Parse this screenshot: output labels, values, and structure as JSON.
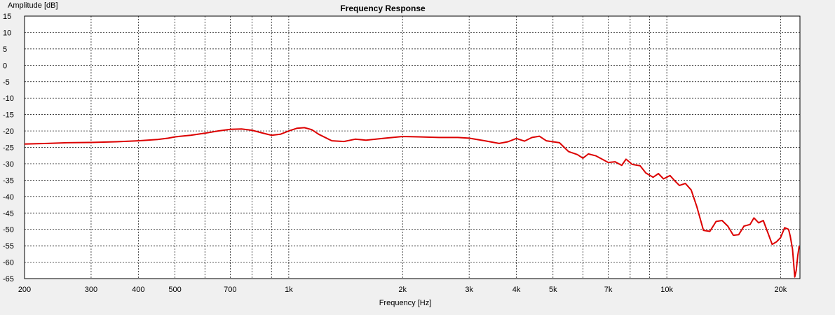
{
  "chart_data": {
    "type": "line",
    "title": "Frequency Response",
    "xlabel": "Frequency [Hz]",
    "ylabel": "Amplitude [dB]",
    "xscale": "log",
    "xlim": [
      200,
      22500
    ],
    "ylim": [
      -65,
      15
    ],
    "grid": true,
    "legend": "none",
    "x_major_ticks": [
      {
        "value": 200,
        "label": "200"
      },
      {
        "value": 300,
        "label": "300"
      },
      {
        "value": 400,
        "label": "400"
      },
      {
        "value": 500,
        "label": "500"
      },
      {
        "value": 700,
        "label": "700"
      },
      {
        "value": 1000,
        "label": "1k"
      },
      {
        "value": 2000,
        "label": "2k"
      },
      {
        "value": 3000,
        "label": "3k"
      },
      {
        "value": 4000,
        "label": "4k"
      },
      {
        "value": 5000,
        "label": "5k"
      },
      {
        "value": 7000,
        "label": "7k"
      },
      {
        "value": 10000,
        "label": "10k"
      },
      {
        "value": 20000,
        "label": "20k"
      }
    ],
    "x_minor_gridlines": [
      600,
      800,
      900,
      6000,
      8000,
      9000
    ],
    "y_ticks": [
      15,
      10,
      5,
      0,
      -5,
      -10,
      -15,
      -20,
      -25,
      -30,
      -35,
      -40,
      -45,
      -50,
      -55,
      -60,
      -65
    ],
    "series": [
      {
        "color": "#dc0000",
        "points": [
          [
            200,
            -24.0
          ],
          [
            230,
            -23.8
          ],
          [
            260,
            -23.6
          ],
          [
            300,
            -23.5
          ],
          [
            350,
            -23.3
          ],
          [
            400,
            -23.0
          ],
          [
            450,
            -22.6
          ],
          [
            480,
            -22.2
          ],
          [
            500,
            -21.8
          ],
          [
            550,
            -21.3
          ],
          [
            600,
            -20.7
          ],
          [
            650,
            -20.0
          ],
          [
            700,
            -19.5
          ],
          [
            750,
            -19.4
          ],
          [
            800,
            -19.8
          ],
          [
            850,
            -20.6
          ],
          [
            900,
            -21.3
          ],
          [
            950,
            -21.0
          ],
          [
            1000,
            -20.0
          ],
          [
            1050,
            -19.2
          ],
          [
            1100,
            -19.0
          ],
          [
            1150,
            -19.6
          ],
          [
            1200,
            -21.0
          ],
          [
            1300,
            -23.0
          ],
          [
            1400,
            -23.2
          ],
          [
            1500,
            -22.5
          ],
          [
            1600,
            -22.8
          ],
          [
            1800,
            -22.2
          ],
          [
            2000,
            -21.7
          ],
          [
            2200,
            -21.8
          ],
          [
            2500,
            -22.0
          ],
          [
            2800,
            -22.0
          ],
          [
            3000,
            -22.2
          ],
          [
            3300,
            -23.0
          ],
          [
            3600,
            -23.8
          ],
          [
            3800,
            -23.3
          ],
          [
            4000,
            -22.3
          ],
          [
            4200,
            -23.1
          ],
          [
            4400,
            -22.0
          ],
          [
            4600,
            -21.6
          ],
          [
            4800,
            -23.0
          ],
          [
            5200,
            -23.6
          ],
          [
            5500,
            -26.3
          ],
          [
            5800,
            -27.2
          ],
          [
            6000,
            -28.3
          ],
          [
            6200,
            -27.0
          ],
          [
            6500,
            -27.6
          ],
          [
            7000,
            -29.6
          ],
          [
            7300,
            -29.4
          ],
          [
            7600,
            -30.5
          ],
          [
            7800,
            -28.6
          ],
          [
            8100,
            -30.2
          ],
          [
            8500,
            -30.6
          ],
          [
            8800,
            -32.8
          ],
          [
            9200,
            -34.1
          ],
          [
            9500,
            -33.0
          ],
          [
            9800,
            -34.6
          ],
          [
            10200,
            -33.6
          ],
          [
            10500,
            -35.2
          ],
          [
            10800,
            -36.6
          ],
          [
            11200,
            -36.0
          ],
          [
            11600,
            -38.0
          ],
          [
            12000,
            -43.0
          ],
          [
            12500,
            -50.3
          ],
          [
            13000,
            -50.6
          ],
          [
            13500,
            -47.6
          ],
          [
            14000,
            -47.3
          ],
          [
            14500,
            -49.0
          ],
          [
            15000,
            -51.8
          ],
          [
            15500,
            -51.6
          ],
          [
            16000,
            -49.0
          ],
          [
            16600,
            -48.5
          ],
          [
            17000,
            -46.5
          ],
          [
            17500,
            -48.0
          ],
          [
            18000,
            -47.3
          ],
          [
            18500,
            -51.0
          ],
          [
            19000,
            -54.6
          ],
          [
            19500,
            -53.8
          ],
          [
            20000,
            -52.5
          ],
          [
            20500,
            -49.5
          ],
          [
            21000,
            -50.0
          ],
          [
            21200,
            -52.0
          ],
          [
            21500,
            -56.0
          ],
          [
            21800,
            -64.5
          ],
          [
            22000,
            -62.5
          ],
          [
            22200,
            -58.0
          ],
          [
            22400,
            -55.0
          ]
        ]
      }
    ]
  }
}
